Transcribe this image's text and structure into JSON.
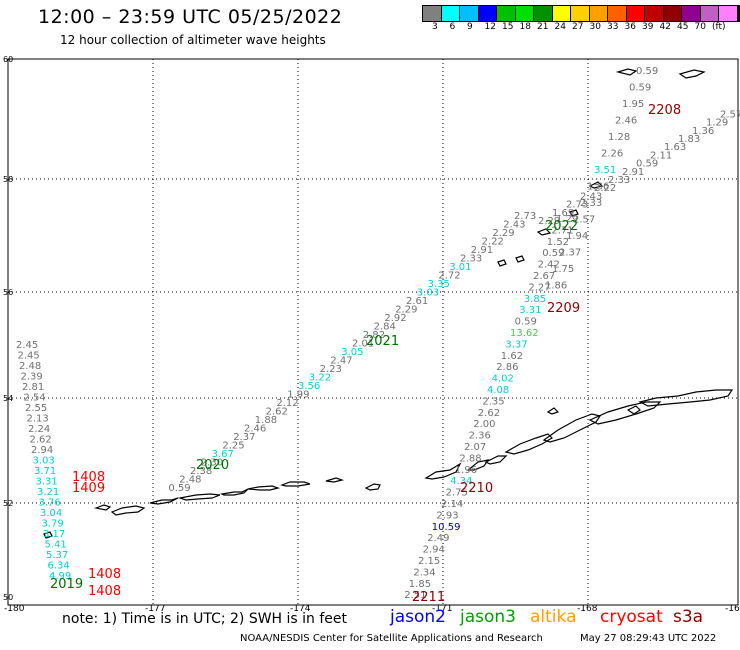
{
  "header": {
    "title": "12:00 – 23:59 UTC 05/25/2022",
    "subtitle": "12 hour collection of altimeter wave heights"
  },
  "legend": {
    "colors": [
      "#808080",
      "#00ffff",
      "#00bfff",
      "#0000ff",
      "#00c000",
      "#00e000",
      "#009000",
      "#ffff00",
      "#ffd000",
      "#ffa000",
      "#ff6000",
      "#ff0000",
      "#c00000",
      "#900000",
      "#900090",
      "#c060c0",
      "#ff80ff",
      "#000000"
    ],
    "labels": [
      "3",
      "6",
      "9",
      "12",
      "15",
      "18",
      "21",
      "24",
      "27",
      "30",
      "33",
      "36",
      "39",
      "42",
      "45",
      "70",
      "(ft)"
    ]
  },
  "axes": {
    "lon_labels": [
      "-180",
      "-177",
      "-174",
      "-171",
      "-168",
      "-16"
    ],
    "lat_labels": [
      "60",
      "58",
      "56",
      "54",
      "52",
      "50"
    ]
  },
  "tracks": [
    {
      "id": "2022",
      "color": "#007000",
      "label": "2022"
    },
    {
      "id": "2208",
      "color": "#8b0000",
      "label": "2208"
    },
    {
      "id": "2021",
      "color": "#007000",
      "label": "2021"
    },
    {
      "id": "2209",
      "color": "#8b0000",
      "label": "2209"
    },
    {
      "id": "2020",
      "color": "#007000",
      "label": "2020"
    },
    {
      "id": "2210",
      "color": "#8b0000",
      "label": "2210"
    },
    {
      "id": "1408a",
      "color": "#ff0000",
      "label": "1408"
    },
    {
      "id": "1409",
      "color": "#ff0000",
      "label": "1409"
    },
    {
      "id": "1408b",
      "color": "#ff0000",
      "label": "1408"
    },
    {
      "id": "1408c",
      "color": "#ff0000",
      "label": "1408"
    },
    {
      "id": "2019",
      "color": "#007000",
      "label": "2019"
    },
    {
      "id": "2211",
      "color": "#8b0000",
      "label": "2211"
    }
  ],
  "swh_values": {
    "track_2208": [
      "0.59",
      "0.59",
      "1.95",
      "2.46",
      "1.28",
      "2.26",
      "3.51",
      "1.86",
      "2.33",
      "2.57",
      "1.94",
      "2.37",
      "1.75",
      "1.86"
    ],
    "track_2022": [
      "1.29",
      "2.71",
      "1.52",
      "0.59",
      "2.42",
      "2.67",
      "2.27",
      "3.85",
      "3.31",
      "0.59",
      "13.62",
      "3.37",
      "1.62",
      "2.86",
      "4.02",
      "4.08",
      "2.35",
      "2.62",
      "2.00",
      "2.36",
      "2.07",
      "2.88",
      "1.96",
      "4.34",
      "2.75",
      "2.14",
      "2.93",
      "10.59",
      "2.49",
      "2.94",
      "2.15",
      "2.34",
      "1.85",
      "2.51"
    ],
    "track_2021": [
      "2.73",
      "2.43",
      "2.29",
      "2.22",
      "2.91",
      "2.33",
      "3.01",
      "2.72",
      "3.35",
      "3.03",
      "2.61",
      "2.29",
      "2.92",
      "2.84",
      "2.82",
      "2.01",
      "3.05",
      "2.47",
      "2.23",
      "3.22",
      "3.56",
      "1.99",
      "2.12",
      "2.62",
      "1.88",
      "2.46",
      "2.37",
      "2.25",
      "3.67",
      "2.30",
      "2.38",
      "2.48",
      "0.59"
    ],
    "track_west": [
      "2.45",
      "2.45",
      "2.48",
      "2.39",
      "2.81",
      "2.54",
      "2.55",
      "2.13",
      "2.24",
      "2.62",
      "2.94",
      "3.03",
      "3.71",
      "3.31",
      "3.21",
      "3.76",
      "3.04",
      "3.79",
      "3.17",
      "5.41",
      "5.37",
      "6.34",
      "4.99"
    ],
    "track_2022_ne": [
      "2.29",
      "1.69",
      "2.73",
      "2.43",
      "2.22",
      "2.33",
      "2.91",
      "0.59",
      "2.11",
      "1.63",
      "1.83",
      "1.36",
      "1.29",
      "2.57"
    ]
  },
  "footer": {
    "note": "note: 1) Time is in UTC; 2) SWH is in feet",
    "sats": [
      {
        "name": "jason2",
        "color": "#0000ff"
      },
      {
        "name": "jason3",
        "color": "#00a000"
      },
      {
        "name": "altika",
        "color": "#ffa000"
      },
      {
        "name": "cryosat",
        "color": "#ff0000"
      },
      {
        "name": "s3a",
        "color": "#8b0000"
      }
    ],
    "credit": "NOAA/NESDIS Center for Satellite Applications and Research",
    "timestamp": "May 27 08:29:43 UTC 2022"
  }
}
